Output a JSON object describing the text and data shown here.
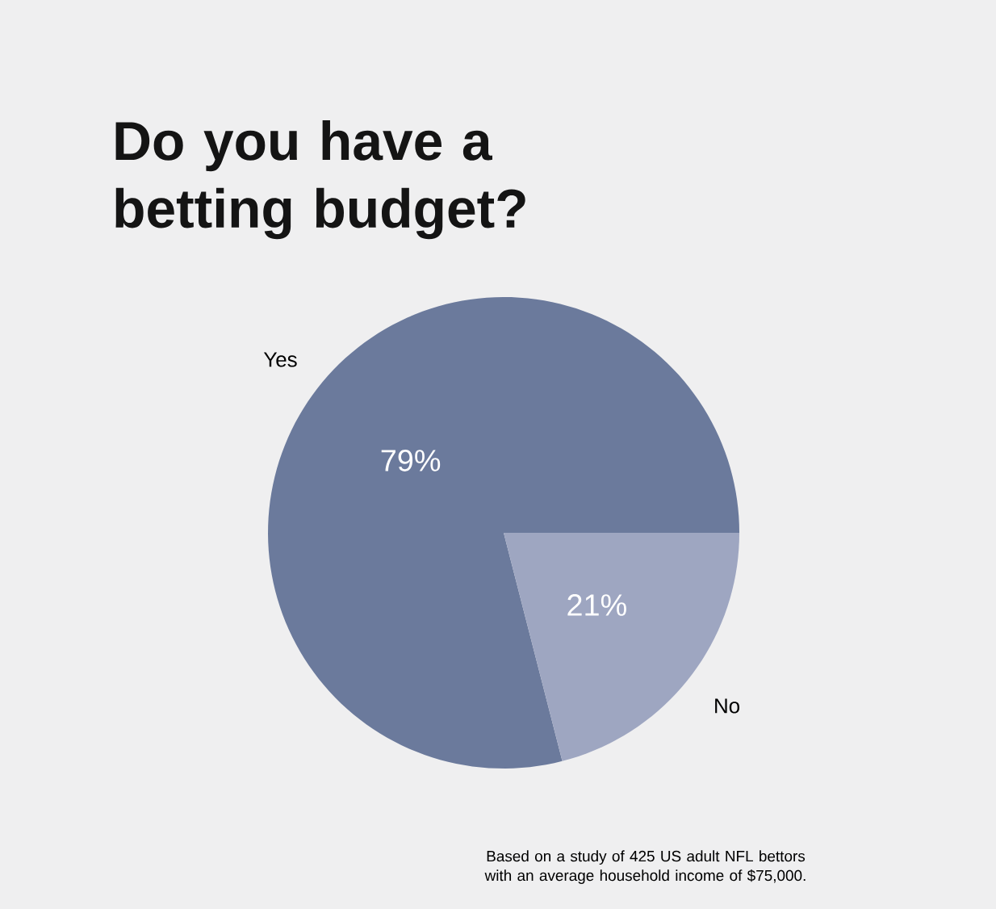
{
  "chart_data": {
    "type": "pie",
    "title": "Do you have a betting budget?",
    "categories": [
      "Yes",
      "No"
    ],
    "values": [
      79,
      21
    ],
    "colors": [
      "#6b7a9c",
      "#9ea6c1"
    ],
    "value_labels": [
      "79%",
      "21%"
    ],
    "annotations": [
      "Based on a study of 425 US adult NFL bettors with an average household income of $75,000."
    ]
  }
}
